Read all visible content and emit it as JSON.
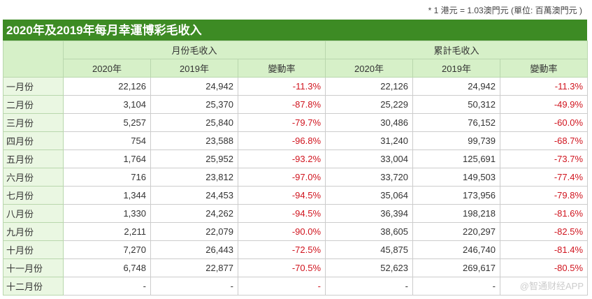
{
  "note": "* 1 港元 = 1.03澳門元 (單位: 百萬澳門元 )",
  "title": "2020年及2019年每月幸運博彩毛收入",
  "groups": [
    "月份毛收入",
    "累計毛收入"
  ],
  "subheaders": [
    "2020年",
    "2019年",
    "變動率",
    "2020年",
    "2019年",
    "變動率"
  ],
  "rows": [
    [
      "一月份",
      "22,126",
      "24,942",
      "-11.3%",
      "22,126",
      "24,942",
      "-11.3%"
    ],
    [
      "二月份",
      "3,104",
      "25,370",
      "-87.8%",
      "25,229",
      "50,312",
      "-49.9%"
    ],
    [
      "三月份",
      "5,257",
      "25,840",
      "-79.7%",
      "30,486",
      "76,152",
      "-60.0%"
    ],
    [
      "四月份",
      "754",
      "23,588",
      "-96.8%",
      "31,240",
      "99,739",
      "-68.7%"
    ],
    [
      "五月份",
      "1,764",
      "25,952",
      "-93.2%",
      "33,004",
      "125,691",
      "-73.7%"
    ],
    [
      "六月份",
      "716",
      "23,812",
      "-97.0%",
      "33,720",
      "149,503",
      "-77.4%"
    ],
    [
      "七月份",
      "1,344",
      "24,453",
      "-94.5%",
      "35,064",
      "173,956",
      "-79.8%"
    ],
    [
      "八月份",
      "1,330",
      "24,262",
      "-94.5%",
      "36,394",
      "198,218",
      "-81.6%"
    ],
    [
      "九月份",
      "2,211",
      "22,079",
      "-90.0%",
      "38,605",
      "220,297",
      "-82.5%"
    ],
    [
      "十月份",
      "7,270",
      "26,443",
      "-72.5%",
      "45,875",
      "246,740",
      "-81.4%"
    ],
    [
      "十一月份",
      "6,748",
      "22,877",
      "-70.5%",
      "52,623",
      "269,617",
      "-80.5%"
    ],
    [
      "十二月份",
      "-",
      "-",
      "-",
      "-",
      "-",
      ""
    ]
  ],
  "watermark": "@智通财经APP",
  "colors": {
    "title_bg": "#3d8b24",
    "header_bg": "#d6f0c8",
    "negative": "#d0141e"
  }
}
